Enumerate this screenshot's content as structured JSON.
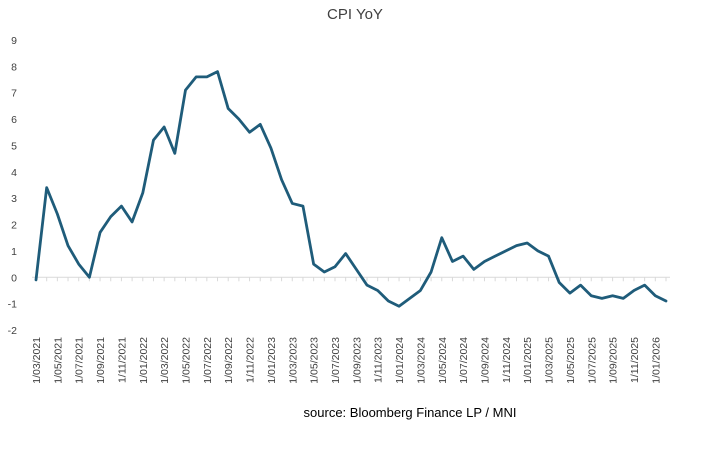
{
  "chart_data": {
    "type": "line",
    "title": "CPI YoY",
    "xlabel": "",
    "ylabel": "",
    "ylim": [
      -2,
      9
    ],
    "yticks": [
      -2,
      -1,
      0,
      1,
      2,
      3,
      4,
      5,
      6,
      7,
      8,
      9
    ],
    "grid": false,
    "legend": "none",
    "x_tick_labels": [
      "1/03/2021",
      "1/05/2021",
      "1/07/2021",
      "1/09/2021",
      "1/11/2021",
      "1/01/2022",
      "1/03/2022",
      "1/05/2022",
      "1/07/2022",
      "1/09/2022",
      "1/11/2022",
      "1/01/2023",
      "1/03/2023",
      "1/05/2023",
      "1/07/2023",
      "1/09/2023",
      "1/11/2023",
      "1/01/2024",
      "1/03/2024",
      "1/05/2024",
      "1/07/2024",
      "1/09/2024",
      "1/11/2024",
      "1/01/2025",
      "1/03/2025",
      "1/05/2025",
      "1/07/2025",
      "1/09/2025",
      "1/11/2025",
      "1/01/2026"
    ],
    "x": [
      "2021-03",
      "2021-04",
      "2021-05",
      "2021-06",
      "2021-07",
      "2021-08",
      "2021-09",
      "2021-10",
      "2021-11",
      "2021-12",
      "2022-01",
      "2022-02",
      "2022-03",
      "2022-04",
      "2022-05",
      "2022-06",
      "2022-07",
      "2022-08",
      "2022-09",
      "2022-10",
      "2022-11",
      "2022-12",
      "2023-01",
      "2023-02",
      "2023-03",
      "2023-04",
      "2023-05",
      "2023-06",
      "2023-07",
      "2023-08",
      "2023-09",
      "2023-10",
      "2023-11",
      "2023-12",
      "2024-01",
      "2024-02",
      "2024-03",
      "2024-04",
      "2024-05",
      "2024-06",
      "2024-07",
      "2024-08",
      "2024-09",
      "2024-10",
      "2024-11",
      "2024-12",
      "2025-01",
      "2025-02",
      "2025-03",
      "2025-04",
      "2025-05",
      "2025-06",
      "2025-07",
      "2025-08",
      "2025-09",
      "2025-10",
      "2025-11",
      "2025-12",
      "2026-01",
      "2026-02"
    ],
    "series": [
      {
        "values": [
          -0.1,
          3.4,
          2.4,
          1.2,
          0.5,
          0.0,
          1.7,
          2.3,
          2.7,
          2.1,
          3.2,
          5.2,
          5.7,
          4.7,
          7.1,
          7.6,
          7.6,
          7.8,
          6.4,
          6.0,
          5.5,
          5.8,
          4.9,
          3.7,
          2.8,
          2.7,
          0.5,
          0.2,
          0.4,
          0.9,
          0.3,
          -0.3,
          -0.5,
          -0.9,
          -1.1,
          -0.8,
          -0.5,
          0.2,
          1.5,
          0.6,
          0.8,
          0.3,
          0.6,
          0.8,
          1.0,
          1.2,
          1.3,
          1.0,
          0.8,
          -0.2,
          -0.6,
          -0.3,
          -0.7,
          -0.8,
          -0.7,
          -0.8,
          -0.5,
          -0.3,
          -0.7,
          -0.9
        ],
        "color": "#1f5c7a"
      }
    ]
  },
  "source": "source:  Bloomberg Finance LP / MNI"
}
